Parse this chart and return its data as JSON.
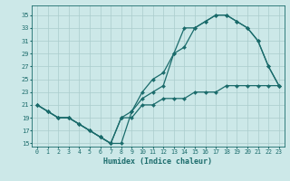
{
  "xlabel": "Humidex (Indice chaleur)",
  "bg_color": "#cce8e8",
  "grid_color": "#aacccc",
  "line_color": "#1a6b6b",
  "xlim": [
    -0.5,
    23.5
  ],
  "ylim": [
    14.5,
    36.5
  ],
  "yticks": [
    15,
    17,
    19,
    21,
    23,
    25,
    27,
    29,
    31,
    33,
    35
  ],
  "xticks": [
    0,
    1,
    2,
    3,
    4,
    5,
    6,
    7,
    8,
    9,
    10,
    11,
    12,
    13,
    14,
    15,
    16,
    17,
    18,
    19,
    20,
    21,
    22,
    23
  ],
  "line1_x": [
    0,
    1,
    2,
    3,
    4,
    5,
    6,
    7,
    8,
    9,
    10,
    11,
    12,
    13,
    14,
    15,
    16,
    17,
    18,
    19,
    20,
    21,
    22,
    23
  ],
  "line1_y": [
    21,
    20,
    19,
    19,
    18,
    17,
    16,
    15,
    15,
    20,
    22,
    23,
    24,
    29,
    33,
    33,
    34,
    35,
    35,
    34,
    33,
    31,
    27,
    24
  ],
  "line2_x": [
    0,
    1,
    2,
    3,
    4,
    5,
    6,
    7,
    8,
    9,
    10,
    11,
    12,
    13,
    14,
    15,
    16,
    17,
    18,
    19,
    20,
    21,
    22,
    23
  ],
  "line2_y": [
    21,
    20,
    19,
    19,
    18,
    17,
    16,
    15,
    19,
    20,
    23,
    25,
    26,
    29,
    30,
    33,
    34,
    35,
    35,
    34,
    33,
    31,
    27,
    24
  ],
  "line3_x": [
    0,
    1,
    2,
    3,
    4,
    5,
    6,
    7,
    8,
    9,
    10,
    11,
    12,
    13,
    14,
    15,
    16,
    17,
    18,
    19,
    20,
    21,
    22,
    23
  ],
  "line3_y": [
    21,
    20,
    19,
    19,
    18,
    17,
    16,
    15,
    19,
    19,
    21,
    21,
    22,
    22,
    22,
    23,
    23,
    23,
    24,
    24,
    24,
    24,
    24,
    24
  ],
  "lw": 0.9,
  "ms": 2.2
}
